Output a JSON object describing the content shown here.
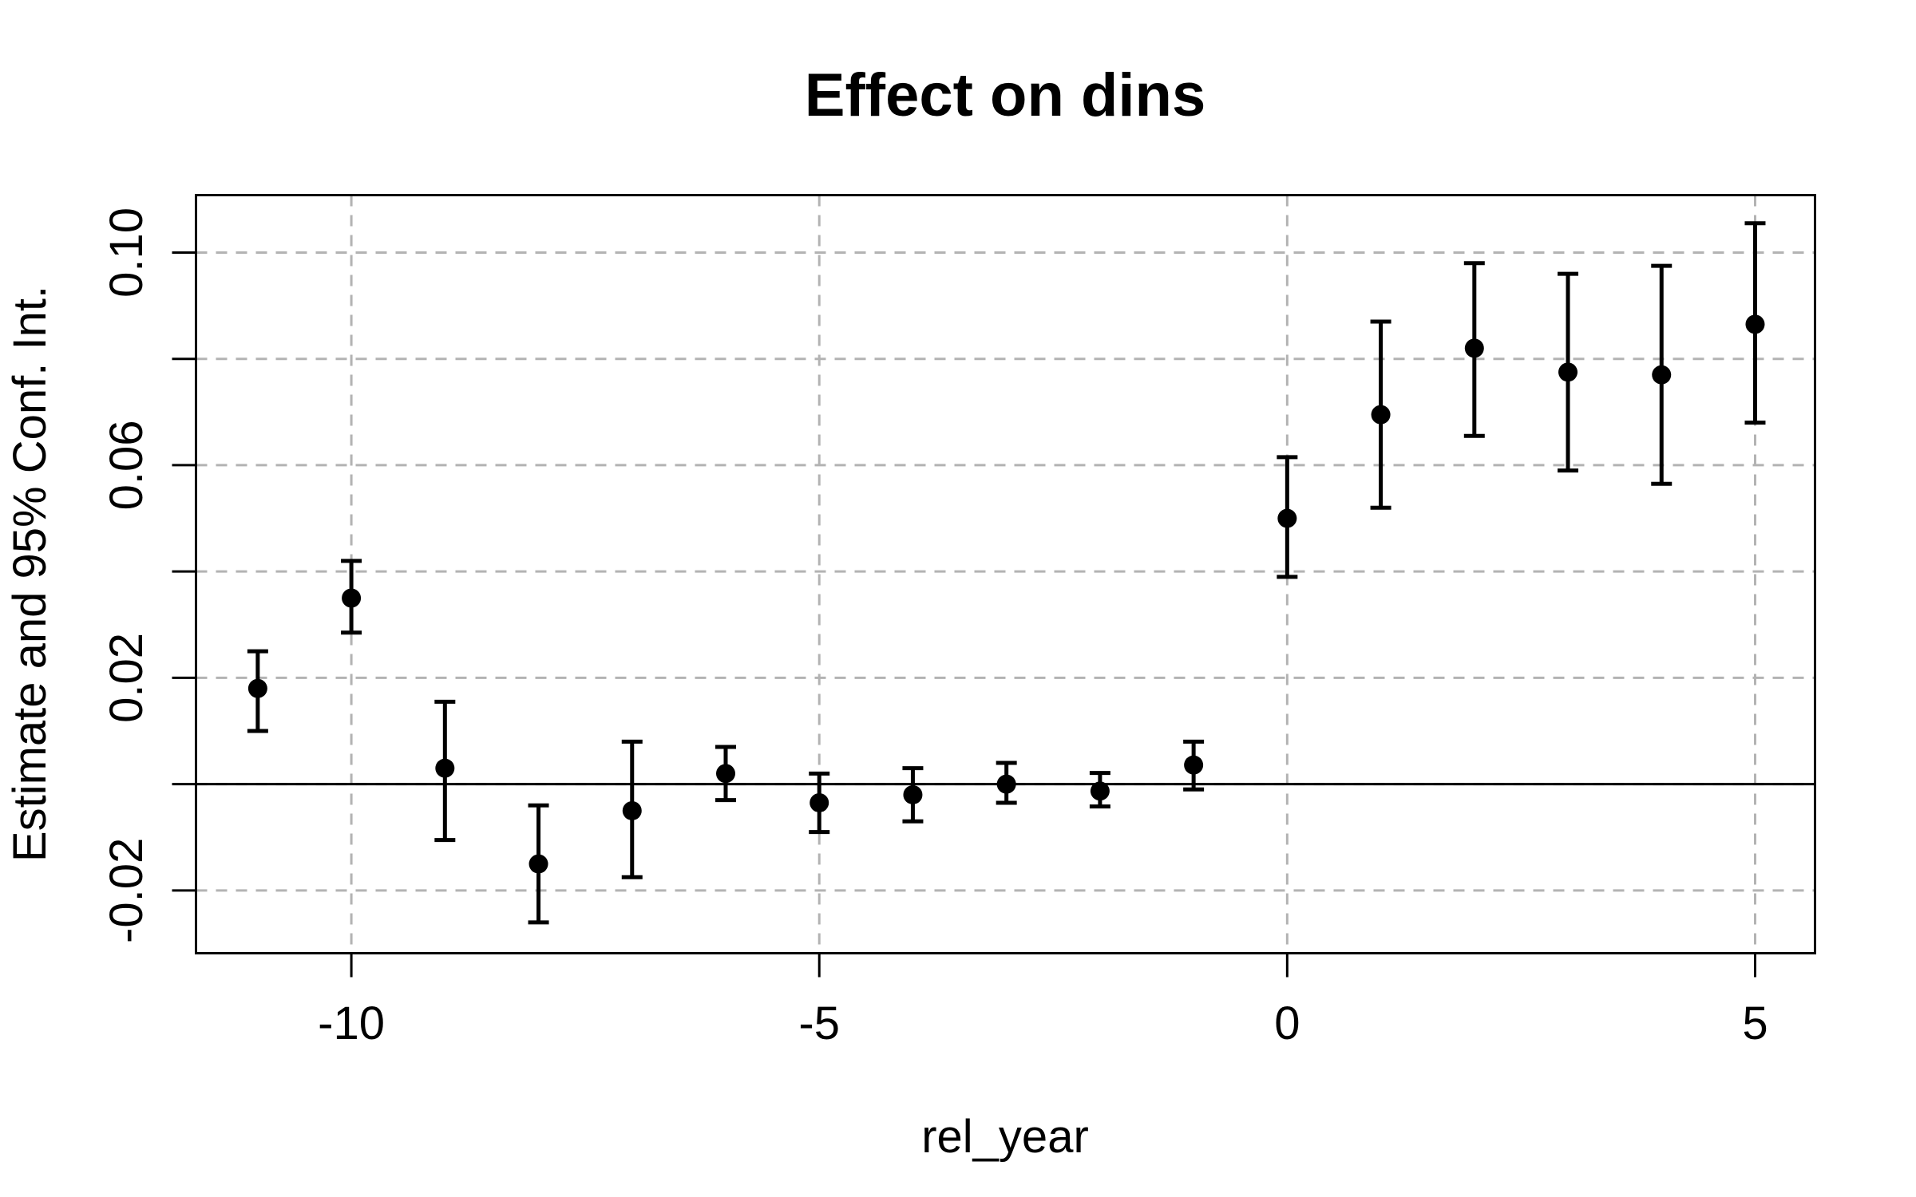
{
  "chart_data": {
    "type": "scatter",
    "title": "Effect on dins",
    "xlabel": "rel_year",
    "ylabel": "Estimate and 95% Conf. Int.",
    "xlim": [
      -11.66,
      5.64
    ],
    "ylim": [
      -0.0318,
      0.1108
    ],
    "grid": {
      "show": true,
      "style": "dashed",
      "color": "#b3b3b3"
    },
    "reference_line_y": 0,
    "marker": {
      "shape": "filled-circle",
      "color": "#000000"
    },
    "error_bars": "95% confidence interval with caps",
    "x_ticks": [
      {
        "v": -10,
        "label": "-10"
      },
      {
        "v": -5,
        "label": "-5"
      },
      {
        "v": 0,
        "label": "0"
      },
      {
        "v": 5,
        "label": "5"
      }
    ],
    "y_ticks": [
      {
        "v": 0.1,
        "label": "0.10"
      },
      {
        "v": 0.08,
        "label": ""
      },
      {
        "v": 0.06,
        "label": "0.06"
      },
      {
        "v": 0.04,
        "label": ""
      },
      {
        "v": 0.02,
        "label": "0.02"
      },
      {
        "v": 0.0,
        "label": ""
      },
      {
        "v": -0.02,
        "label": "-0.02"
      }
    ],
    "points": [
      {
        "x": -11,
        "est": 0.018,
        "lo": 0.01,
        "hi": 0.025
      },
      {
        "x": -10,
        "est": 0.035,
        "lo": 0.0285,
        "hi": 0.042
      },
      {
        "x": -9,
        "est": 0.003,
        "lo": -0.0105,
        "hi": 0.0155
      },
      {
        "x": -8,
        "est": -0.015,
        "lo": -0.026,
        "hi": -0.004
      },
      {
        "x": -7,
        "est": -0.005,
        "lo": -0.0175,
        "hi": 0.008
      },
      {
        "x": -6,
        "est": 0.002,
        "lo": -0.003,
        "hi": 0.007
      },
      {
        "x": -5,
        "est": -0.0035,
        "lo": -0.009,
        "hi": 0.002
      },
      {
        "x": -4,
        "est": -0.002,
        "lo": -0.007,
        "hi": 0.003
      },
      {
        "x": -3,
        "est": 0.0,
        "lo": -0.0035,
        "hi": 0.004
      },
      {
        "x": -2,
        "est": -0.0013,
        "lo": -0.0042,
        "hi": 0.0021
      },
      {
        "x": -1,
        "est": 0.0036,
        "lo": -0.001,
        "hi": 0.008
      },
      {
        "x": 0,
        "est": 0.05,
        "lo": 0.039,
        "hi": 0.0615
      },
      {
        "x": 1,
        "est": 0.0695,
        "lo": 0.052,
        "hi": 0.087
      },
      {
        "x": 2,
        "est": 0.082,
        "lo": 0.0655,
        "hi": 0.098
      },
      {
        "x": 3,
        "est": 0.0775,
        "lo": 0.059,
        "hi": 0.096
      },
      {
        "x": 4,
        "est": 0.077,
        "lo": 0.0565,
        "hi": 0.0975
      },
      {
        "x": 5,
        "est": 0.0865,
        "lo": 0.068,
        "hi": 0.1055
      }
    ]
  }
}
